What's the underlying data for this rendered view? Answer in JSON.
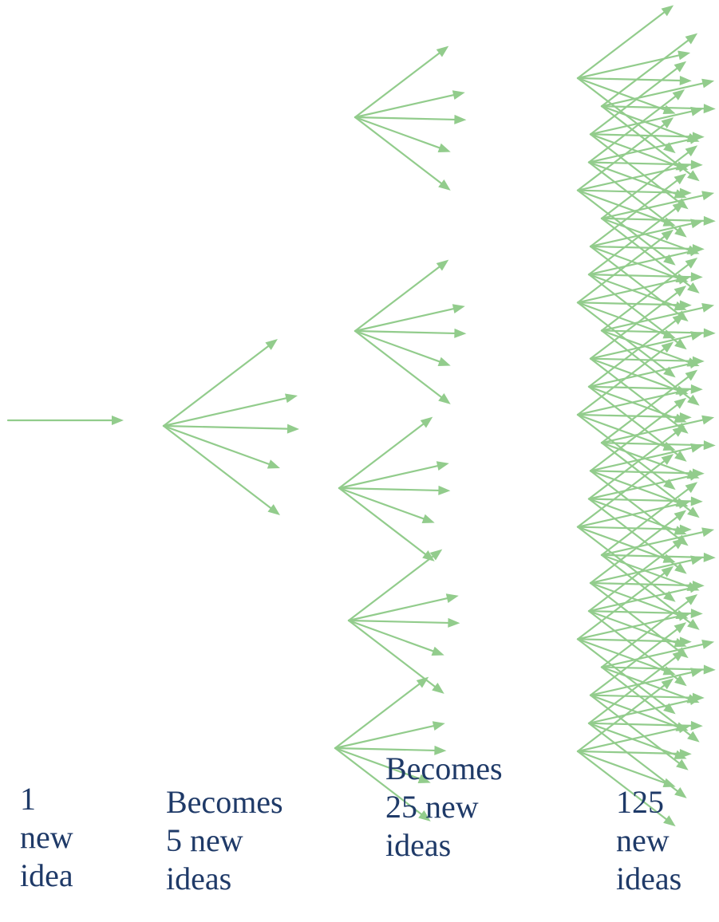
{
  "captions": [
    {
      "lines": [
        "1",
        "new",
        "idea"
      ]
    },
    {
      "lines": [
        "Becomes",
        "5 new",
        "ideas"
      ]
    },
    {
      "lines": [
        "Becomes",
        "25 new",
        "ideas"
      ]
    },
    {
      "lines": [
        "125",
        "new",
        "ideas"
      ]
    }
  ],
  "colors": {
    "arrow": "#92cc8c",
    "text": "#1f3a68"
  },
  "stages": [
    {
      "label": "1 new idea",
      "count": 1
    },
    {
      "label": "5 new ideas",
      "count": 5
    },
    {
      "label": "25 new ideas",
      "count": 25
    },
    {
      "label": "125 new ideas",
      "count": 125
    }
  ]
}
